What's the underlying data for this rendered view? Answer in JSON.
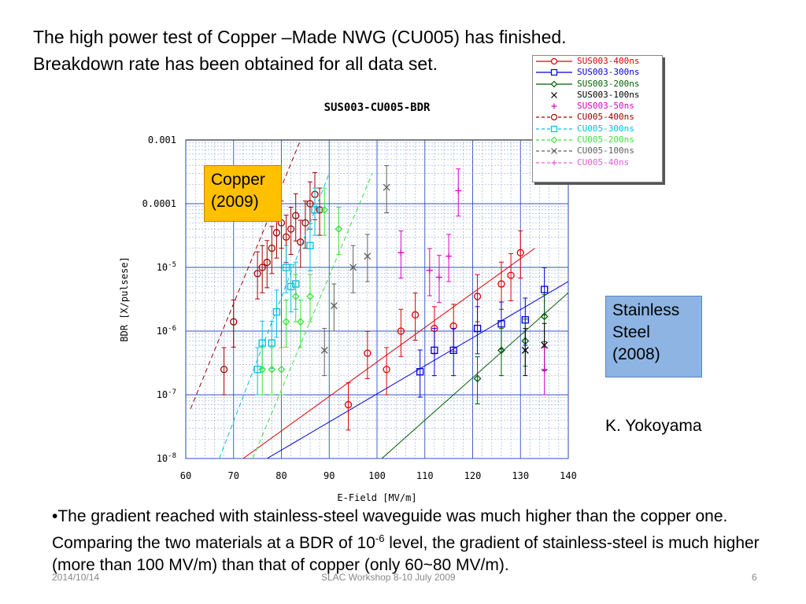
{
  "slide": {
    "title_line1": "The high power test of Copper –Made NWG (CU005) has finished.",
    "title_line2": "Breakdown rate has been obtained for all data set.",
    "copper_box_line1": "Copper",
    "copper_box_line2": "(2009)",
    "ss_box_line1": "Stainless",
    "ss_box_line2": "Steel",
    "ss_box_line3": "(2008)",
    "author": "K. Yokoyama",
    "bullet_pre": "•The gradient reached with stainless-steel waveguide was much higher than the copper one.  Comparing the two materials at a BDR of 10",
    "bullet_sup": "-6",
    "bullet_post": " level, the gradient of stainless-steel is much higher (more than 100 MV/m) than that of copper (only 60~80 MV/m).",
    "footer_date": "2014/10/14",
    "footer_event": "SLAC Workshop 8-10 July 2009",
    "footer_page": "6"
  },
  "chart_data": {
    "type": "scatter",
    "title": "SUS003-CU005-BDR",
    "xlabel": "E-Field [MV/m]",
    "ylabel": "BDR [X/pulsese]",
    "xlim": [
      60,
      140
    ],
    "ylim_log10": [
      -8,
      -3
    ],
    "log_y": true,
    "grid": true,
    "x_ticks": [
      60,
      70,
      80,
      90,
      100,
      110,
      120,
      130,
      140
    ],
    "y_ticks": [
      {
        "value": 0.001,
        "label": "0.001"
      },
      {
        "value": 0.0001,
        "label": "0.0001"
      },
      {
        "value": 1e-05,
        "label": "10^-5"
      },
      {
        "value": 1e-06,
        "label": "10^-6"
      },
      {
        "value": 1e-07,
        "label": "10^-7"
      },
      {
        "value": 1e-08,
        "label": "10^-8"
      }
    ],
    "legend_position": "top-right",
    "series": [
      {
        "name": "SUS003-400ns",
        "color": "#e00000",
        "marker": "circle",
        "dashed": false,
        "fit": [
          [
            72,
            1e-08
          ],
          [
            133,
            2e-05
          ]
        ],
        "points": [
          [
            94,
            7e-08
          ],
          [
            98,
            4.5e-07
          ],
          [
            102,
            2.5e-07
          ],
          [
            105,
            1e-06
          ],
          [
            108,
            1.8e-06
          ],
          [
            112,
            1.1e-06
          ],
          [
            116,
            1.2e-06
          ],
          [
            121,
            3.5e-06
          ],
          [
            126,
            5.5e-06
          ],
          [
            128,
            7.5e-06
          ],
          [
            130,
            1.7e-05
          ]
        ]
      },
      {
        "name": "SUS003-300ns",
        "color": "#0000e0",
        "marker": "square",
        "dashed": false,
        "fit": [
          [
            77,
            1e-08
          ],
          [
            140,
            6e-06
          ]
        ],
        "points": [
          [
            109,
            2.3e-07
          ],
          [
            112,
            5e-07
          ],
          [
            116,
            5e-07
          ],
          [
            121,
            1.1e-06
          ],
          [
            126,
            1.3e-06
          ],
          [
            131,
            1.5e-06
          ],
          [
            135,
            4.5e-06
          ]
        ]
      },
      {
        "name": "SUS003-200ns",
        "color": "#006000",
        "marker": "diamond",
        "dashed": false,
        "fit": [
          [
            101,
            1e-08
          ],
          [
            140,
            4e-06
          ]
        ],
        "points": [
          [
            121,
            1.8e-07
          ],
          [
            126,
            5e-07
          ],
          [
            131,
            7e-07
          ],
          [
            135,
            1.7e-06
          ]
        ]
      },
      {
        "name": "SUS003-100ns",
        "color": "#000000",
        "marker": "x",
        "dashed": false,
        "points": [
          [
            131,
            5e-07
          ],
          [
            135,
            6e-07
          ]
        ]
      },
      {
        "name": "SUS003-50ns",
        "color": "#e000c0",
        "marker": "plus",
        "dashed": false,
        "points": [
          [
            105,
            1.7e-05
          ],
          [
            111,
            9e-06
          ],
          [
            113,
            7e-06
          ],
          [
            115,
            1.5e-05
          ],
          [
            117,
            0.00016
          ],
          [
            135,
            2.5e-07
          ]
        ]
      },
      {
        "name": "CU005-400ns",
        "color": "#a00000",
        "marker": "circle",
        "dashed": true,
        "fit": [
          [
            61,
            6e-08
          ],
          [
            84,
            0.001
          ]
        ],
        "points": [
          [
            68,
            2.5e-07
          ],
          [
            70,
            1.4e-06
          ],
          [
            75,
            8e-06
          ],
          [
            76,
            1e-05
          ],
          [
            77,
            1.2e-05
          ],
          [
            78,
            2e-05
          ],
          [
            79,
            3.5e-05
          ],
          [
            80,
            5e-05
          ],
          [
            81,
            3e-05
          ],
          [
            82,
            4e-05
          ],
          [
            83,
            6.5e-05
          ],
          [
            84,
            2.5e-05
          ],
          [
            85,
            5e-05
          ],
          [
            86,
            0.0001
          ],
          [
            87,
            0.00014
          ],
          [
            88,
            8e-05
          ]
        ]
      },
      {
        "name": "CU005-300ns",
        "color": "#00c0e0",
        "marker": "square",
        "dashed": true,
        "fit": [
          [
            67,
            1e-08
          ],
          [
            90,
            0.0003
          ]
        ],
        "points": [
          [
            75,
            2.5e-07
          ],
          [
            76,
            6.5e-07
          ],
          [
            78,
            6.5e-07
          ],
          [
            79,
            2e-06
          ],
          [
            81,
            1e-05
          ],
          [
            82,
            5e-06
          ],
          [
            83,
            5.5e-06
          ],
          [
            86,
            2.2e-05
          ],
          [
            87,
            8e-05
          ]
        ]
      },
      {
        "name": "CU005-200ns",
        "color": "#40e040",
        "marker": "diamond",
        "dashed": true,
        "fit": [
          [
            74,
            1e-08
          ],
          [
            99,
            0.0003
          ]
        ],
        "points": [
          [
            76,
            2.5e-07
          ],
          [
            78,
            2.5e-07
          ],
          [
            80,
            2.5e-07
          ],
          [
            81,
            1.4e-06
          ],
          [
            83,
            3.5e-06
          ],
          [
            84,
            1.4e-06
          ],
          [
            86,
            3.5e-06
          ],
          [
            89,
            8e-05
          ],
          [
            92,
            4e-05
          ]
        ]
      },
      {
        "name": "CU005-100ns",
        "color": "#606060",
        "marker": "x",
        "dashed": true,
        "points": [
          [
            89,
            5e-07
          ],
          [
            91,
            2.5e-06
          ],
          [
            95,
            1e-05
          ],
          [
            98,
            1.5e-05
          ],
          [
            102,
            0.00018
          ]
        ]
      },
      {
        "name": "CU005-40ns",
        "color": "#e060e0",
        "marker": "plus",
        "dashed": true,
        "points": []
      }
    ]
  }
}
